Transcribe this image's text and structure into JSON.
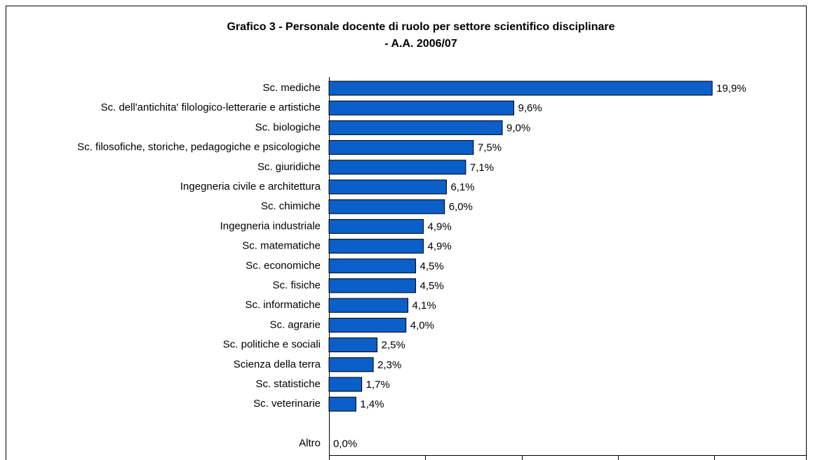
{
  "chart_data": {
    "type": "bar",
    "orientation": "horizontal",
    "title": "Grafico 3 - Personale docente di ruolo per settore scientifico disciplinare",
    "subtitle": "- A.A. 2006/07",
    "categories": [
      "Sc. mediche",
      "Sc. dell'antichita' filologico-letterarie e artistiche",
      "Sc. biologiche",
      "Sc. filosofiche, storiche, pedagogiche e psicologiche",
      "Sc. giuridiche",
      "Ingegneria civile e architettura",
      "Sc. chimiche",
      "Ingegneria industriale",
      "Sc. matematiche",
      "Sc. economiche",
      "Sc. fisiche",
      "Sc. informatiche",
      "Sc. agrarie",
      "Sc. politiche e sociali",
      "Scienza della terra",
      "Sc. statistiche",
      "Sc. veterinarie",
      null,
      "Altro"
    ],
    "values": [
      19.9,
      9.6,
      9.0,
      7.5,
      7.1,
      6.1,
      6.0,
      4.9,
      4.9,
      4.5,
      4.5,
      4.1,
      4.0,
      2.5,
      2.3,
      1.7,
      1.4,
      null,
      0.0
    ],
    "value_labels": [
      "19,9%",
      "9,6%",
      "9,0%",
      "7,5%",
      "7,1%",
      "6,1%",
      "6,0%",
      "4,9%",
      "4,9%",
      "4,5%",
      "4,5%",
      "4,1%",
      "4,0%",
      "2,5%",
      "2,3%",
      "1,7%",
      "1,4%",
      null,
      "0,0%"
    ],
    "color": "#0b5fc8",
    "xlim": [
      0,
      20
    ],
    "xticks": [
      0,
      5,
      10,
      15,
      20
    ]
  }
}
